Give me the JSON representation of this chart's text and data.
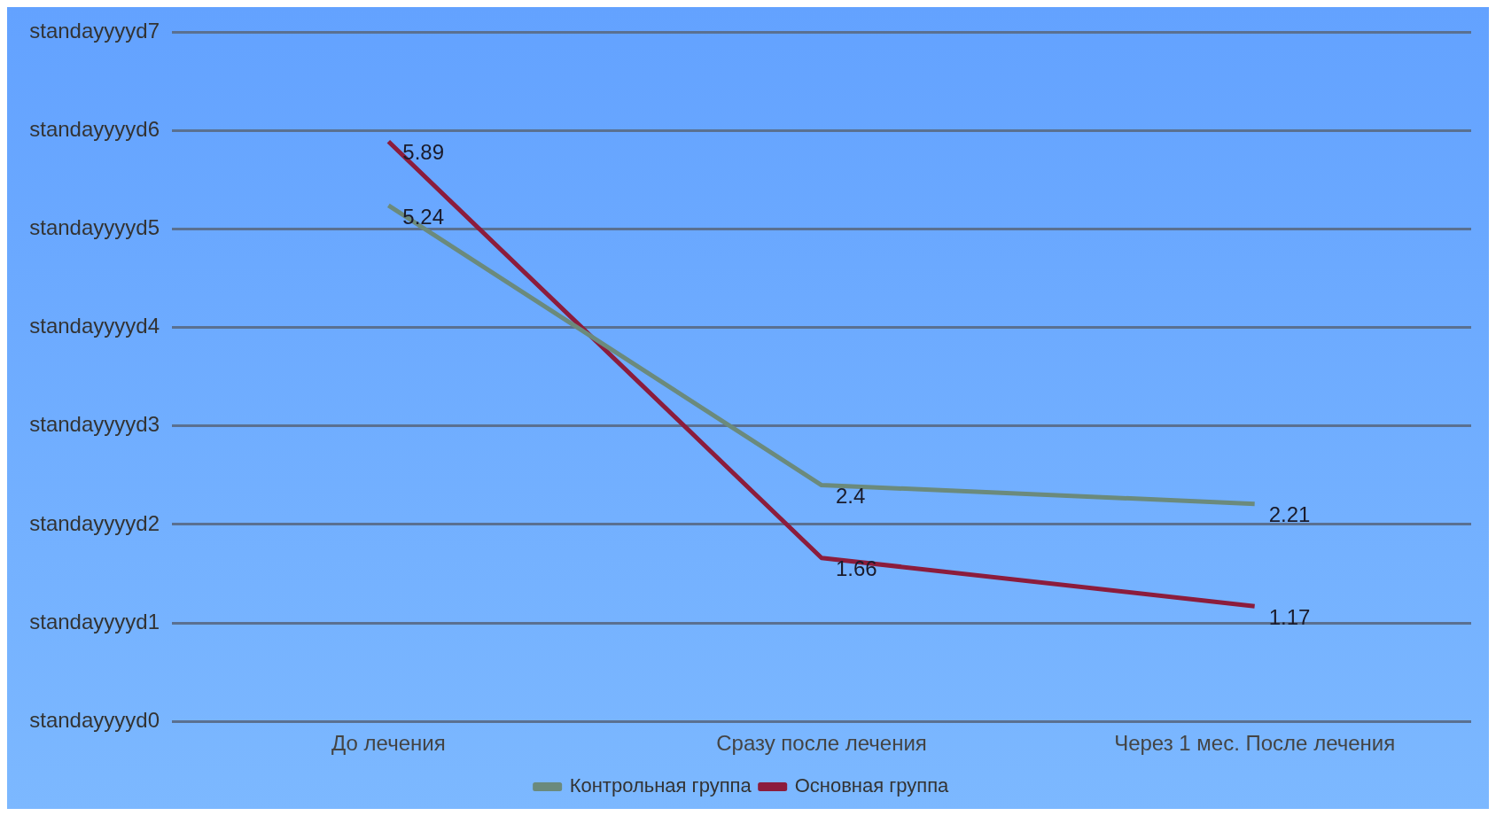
{
  "chart_data": {
    "type": "line",
    "categories": [
      "До лечения",
      "Сразу после лечения",
      "Через 1 мес. После лечения"
    ],
    "series": [
      {
        "name": "Контрольная группа",
        "color": "#6b8a7c",
        "values": [
          5.24,
          2.4,
          2.21
        ]
      },
      {
        "name": "Основная группа",
        "color": "#8c1c3c",
        "values": [
          5.89,
          1.66,
          1.17
        ]
      }
    ],
    "ylim": [
      0,
      7
    ],
    "yticks": [
      {
        "value": 0,
        "label": null
      },
      {
        "value": 1,
        "label": null
      },
      {
        "value": 2,
        "label": null
      },
      {
        "value": 3,
        "label": null
      },
      {
        "value": 4,
        "label": null
      },
      {
        "value": 5,
        "label": null
      },
      {
        "value": 6,
        "label": null
      },
      {
        "value": 7,
        "label": null
      }
    ],
    "annotations": [
      "standayyyyd0",
      "standayyyyd1",
      "standayyyyd2",
      "standayyyyd3",
      "standayyyyd4",
      "standayyyyd5",
      "standayyyyd6",
      "standayyyyd7"
    ],
    "grid": "y",
    "legend": "bottom",
    "data_labels": true,
    "marker": "none",
    "line_style": "solid"
  }
}
